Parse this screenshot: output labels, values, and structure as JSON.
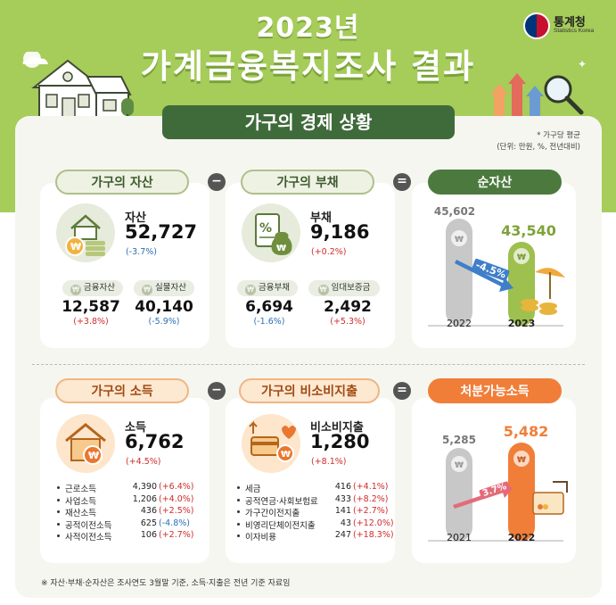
{
  "header": {
    "year_title": "2023년",
    "main_title": "가계금융복지조사 결과",
    "logo_name": "통계청",
    "logo_en": "Statistics Korea"
  },
  "section": {
    "title": "가구의 경제 상황",
    "note_line1": "* 가구당 평균",
    "note_line2": "(단위: 만원, %, 전년대비)"
  },
  "assets": {
    "label": "가구의 자산",
    "name": "자산",
    "value": "52,727",
    "change": "(-3.7%)",
    "sub": [
      {
        "label": "금융자산",
        "value": "12,587",
        "change": "(+3.8%)"
      },
      {
        "label": "실물자산",
        "value": "40,140",
        "change": "(-5.9%)"
      }
    ]
  },
  "debt": {
    "label": "가구의 부채",
    "name": "부채",
    "value": "9,186",
    "change": "(+0.2%)",
    "sub": [
      {
        "label": "금융부채",
        "value": "6,694",
        "change": "(-1.6%)"
      },
      {
        "label": "임대보증금",
        "value": "2,492",
        "change": "(+5.3%)"
      }
    ]
  },
  "net_assets": {
    "label": "순자산",
    "bars": [
      {
        "year": "2022",
        "value": "45,602"
      },
      {
        "year": "2023",
        "value": "43,540"
      }
    ],
    "change": "-4.5%"
  },
  "income": {
    "label": "가구의 소득",
    "name": "소득",
    "value": "6,762",
    "change": "(+4.5%)",
    "items": [
      {
        "label": "근로소득",
        "value": "4,390",
        "change": "(+6.4%)",
        "sign": "pos"
      },
      {
        "label": "사업소득",
        "value": "1,206",
        "change": "(+4.0%)",
        "sign": "pos"
      },
      {
        "label": "재산소득",
        "value": "436",
        "change": "(+2.5%)",
        "sign": "pos"
      },
      {
        "label": "공적이전소득",
        "value": "625",
        "change": "(-4.8%)",
        "sign": "neg"
      },
      {
        "label": "사적이전소득",
        "value": "106",
        "change": "(+2.7%)",
        "sign": "pos"
      }
    ]
  },
  "nonconsumption": {
    "label": "가구의 비소비지출",
    "name": "비소비지출",
    "value": "1,280",
    "change": "(+8.1%)",
    "items": [
      {
        "label": "세금",
        "value": "416",
        "change": "(+4.1%)",
        "sign": "pos"
      },
      {
        "label": "공적연금·사회보험료",
        "value": "433",
        "change": "(+8.2%)",
        "sign": "pos"
      },
      {
        "label": "가구간이전지출",
        "value": "141",
        "change": "(+2.7%)",
        "sign": "pos"
      },
      {
        "label": "비영리단체이전지출",
        "value": "43",
        "change": "(+12.0%)",
        "sign": "pos"
      },
      {
        "label": "이자비용",
        "value": "247",
        "change": "(+18.3%)",
        "sign": "pos"
      }
    ]
  },
  "disposable": {
    "label": "처분가능소득",
    "bars": [
      {
        "year": "2021",
        "value": "5,285"
      },
      {
        "year": "2022",
        "value": "5,482"
      }
    ],
    "change": "3.7%"
  },
  "operators": {
    "minus": "−",
    "equals": "="
  },
  "footer": "※ 자산·부채·순자산은 조사연도 3월말 기준, 소득·지출은 전년 기준 자료임",
  "colors": {
    "green_bg": "#a6cc5a",
    "dark_green": "#3f6a3a",
    "orange": "#f07e39",
    "positive": "#d12b2b",
    "negative": "#2b6fb5"
  }
}
